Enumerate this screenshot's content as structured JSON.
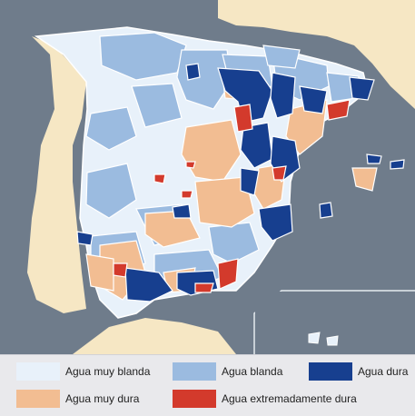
{
  "map": {
    "colors": {
      "sea": "#6f7c8b",
      "land": "#f6e7c4",
      "region_stroke": "#ffffff"
    }
  },
  "legend": {
    "items": [
      {
        "label": "Agua muy blanda",
        "color": "#e8f1fa"
      },
      {
        "label": "Agua blanda",
        "color": "#9bbbe0"
      },
      {
        "label": "Agua dura",
        "color": "#173f8f"
      },
      {
        "label": "Agua muy dura",
        "color": "#f2bd92"
      },
      {
        "label": "Agua extremadamente dura",
        "color": "#d33a2c"
      }
    ]
  }
}
